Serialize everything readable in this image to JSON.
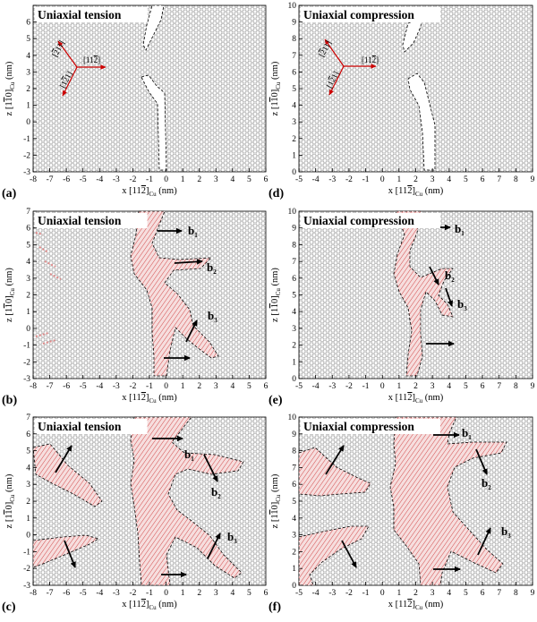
{
  "figure": {
    "panels": [
      {
        "id": "a",
        "label": "(a)",
        "title": "Uniaxial tension",
        "xmin": -8,
        "xmax": 6,
        "ymin": -3,
        "ymax": 7,
        "xticks": [
          "-8",
          "-7",
          "-6",
          "-5",
          "-4",
          "-3",
          "-2",
          "-1",
          "0",
          "1",
          "2",
          "3",
          "4",
          "5",
          "6"
        ],
        "yticks": [
          "-3",
          "-2",
          "-1",
          "0",
          "1",
          "2",
          "3",
          "4",
          "5",
          "6",
          "7"
        ],
        "ytick_texts": [
          "-3",
          "-2",
          "-1",
          "0",
          "1",
          "2",
          "3",
          "4",
          "5",
          "6",
          ""
        ],
        "xlabel": "x [11",
        "xlabel_bar": "2",
        "xlabel_end": "]",
        "xlabel_sub": "Cu",
        "xlabel_unit": " (nm)",
        "ylabel": "z [1",
        "ylabel_bar": "1",
        "ylabel_mid": "0]",
        "ylabel_sub": "Cu",
        "ylabel_unit": " (nm)"
      },
      {
        "id": "d",
        "label": "(d)",
        "title": "Uniaxial compression",
        "xmin": -5,
        "xmax": 9,
        "ymin": 0,
        "ymax": 10,
        "xticks": [
          "-5",
          "-4",
          "-3",
          "-2",
          "-1",
          "0",
          "1",
          "2",
          "3",
          "4",
          "5",
          "6",
          "7",
          "8",
          "9"
        ],
        "yticks": [
          "0",
          "1",
          "2",
          "3",
          "4",
          "5",
          "6",
          "7",
          "8",
          "9",
          "10"
        ],
        "xlabel": "x [11",
        "xlabel_bar": "2",
        "xlabel_end": "]",
        "xlabel_sub": "Cu",
        "xlabel_unit": " (nm)",
        "ylabel": "z [1",
        "ylabel_bar": "1",
        "ylabel_mid": "0]",
        "ylabel_sub": "Cu",
        "ylabel_unit": " (nm)"
      },
      {
        "id": "b",
        "label": "(b)",
        "title": "Uniaxial tension",
        "xmin": -8,
        "xmax": 6,
        "ymin": -3,
        "ymax": 7,
        "xticks": [
          "-8",
          "-7",
          "-6",
          "-5",
          "-4",
          "-3",
          "-2",
          "-1",
          "0",
          "1",
          "2",
          "3",
          "4",
          "5",
          "6"
        ],
        "yticks": [
          "-3",
          "-2",
          "-1",
          "0",
          "1",
          "2",
          "3",
          "4",
          "5",
          "6",
          "7"
        ],
        "xlabel": "x [11",
        "xlabel_bar": "2",
        "xlabel_end": "]",
        "xlabel_sub": "Cu",
        "xlabel_unit": " (nm)",
        "ylabel": "z [1",
        "ylabel_bar": "1",
        "ylabel_mid": "0]",
        "ylabel_sub": "Cu",
        "ylabel_unit": " (nm)",
        "burgers": [
          "b",
          "1",
          "b",
          "2",
          "b",
          "3"
        ]
      },
      {
        "id": "e",
        "label": "(e)",
        "title": "Uniaxial compression",
        "xmin": -5,
        "xmax": 9,
        "ymin": 0,
        "ymax": 10,
        "xticks": [
          "-5",
          "-4",
          "-3",
          "-2",
          "-1",
          "0",
          "1",
          "2",
          "3",
          "4",
          "5",
          "6",
          "7",
          "8",
          "9"
        ],
        "yticks": [
          "0",
          "1",
          "2",
          "3",
          "4",
          "5",
          "6",
          "7",
          "8",
          "9",
          "10"
        ],
        "xlabel": "x [11",
        "xlabel_bar": "2",
        "xlabel_end": "]",
        "xlabel_sub": "Cu",
        "xlabel_unit": " (nm)",
        "ylabel": "z [1",
        "ylabel_bar": "1",
        "ylabel_mid": "0]",
        "ylabel_sub": "Cu",
        "ylabel_unit": " (nm)",
        "burgers": [
          "b",
          "1",
          "b",
          "2",
          "b",
          "3"
        ]
      },
      {
        "id": "c",
        "label": "(c)",
        "title": "Uniaxial tension",
        "xmin": -8,
        "xmax": 6,
        "ymin": -3,
        "ymax": 7,
        "xticks": [
          "-8",
          "-7",
          "-6",
          "-5",
          "-4",
          "-3",
          "-2",
          "-1",
          "0",
          "1",
          "2",
          "3",
          "4",
          "5",
          "6"
        ],
        "yticks": [
          "-3",
          "-2",
          "-1",
          "0",
          "1",
          "2",
          "3",
          "4",
          "5",
          "6",
          "7"
        ],
        "xlabel": "x [11",
        "xlabel_bar": "2",
        "xlabel_end": "]",
        "xlabel_sub": "Cu",
        "xlabel_unit": " (nm)",
        "ylabel": "z [1",
        "ylabel_bar": "1",
        "ylabel_mid": "0]",
        "ylabel_sub": "Cu",
        "ylabel_unit": " (nm)",
        "burgers": [
          "b",
          "1",
          "b",
          "2",
          "b",
          "3"
        ]
      },
      {
        "id": "f",
        "label": "(f)",
        "title": "Uniaxial compression",
        "xmin": -5,
        "xmax": 9,
        "ymin": 0,
        "ymax": 10,
        "xticks": [
          "-5",
          "-4",
          "-3",
          "-2",
          "-1",
          "0",
          "1",
          "2",
          "3",
          "4",
          "5",
          "6",
          "7",
          "8",
          "9"
        ],
        "yticks": [
          "0",
          "1",
          "2",
          "3",
          "4",
          "5",
          "6",
          "7",
          "8",
          "9",
          "10"
        ],
        "xlabel": "x [11",
        "xlabel_bar": "2",
        "xlabel_end": "]",
        "xlabel_sub": "Cu",
        "xlabel_unit": " (nm)",
        "ylabel": "z [1",
        "ylabel_bar": "1",
        "ylabel_mid": "0]",
        "ylabel_sub": "Cu",
        "ylabel_unit": " (nm)",
        "burgers": [
          "b",
          "1",
          "b",
          "2",
          "b",
          "3"
        ]
      }
    ],
    "directions": {
      "a": [
        "[",
        "2",
        "11]",
        "[11",
        "2",
        "]",
        "[1",
        "2",
        "1]"
      ],
      "d": [
        "[",
        "2",
        "11]",
        "[11",
        "2",
        "]",
        "[1",
        "2",
        "1]"
      ]
    },
    "colors": {
      "atoms": "#9a9a9a",
      "dislocation": "#d24a4a",
      "arrow": "#000000",
      "axis_arrow": "#cc0000"
    }
  }
}
